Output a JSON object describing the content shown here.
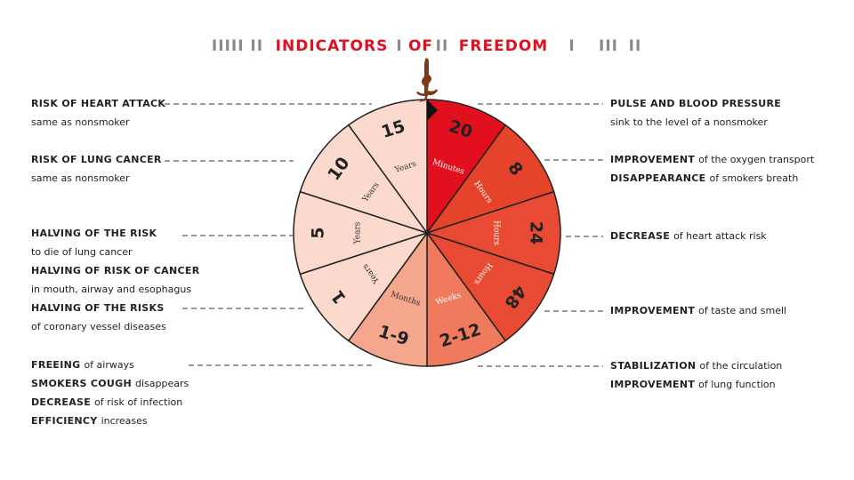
{
  "title": {
    "parts": [
      {
        "text": "IIIII II",
        "color": "#8a8a8a"
      },
      {
        "text": "INDICATORS",
        "color": "#e2101e"
      },
      {
        "text": "I",
        "color": "#8a8a8a"
      },
      {
        "text": "OF",
        "color": "#e2101e"
      },
      {
        "text": "II",
        "color": "#8a8a8a"
      },
      {
        "text": "FREEDOM",
        "color": "#e2101e"
      },
      {
        "text": "I",
        "color": "#8a8a8a"
      },
      {
        "text": "III",
        "color": "#8a8a8a"
      },
      {
        "text": "II",
        "color": "#8a8a8a"
      }
    ]
  },
  "wheel": {
    "segments": [
      {
        "number": "20",
        "unit": "Minutes",
        "color": "#e2101e"
      },
      {
        "number": "8",
        "unit": "Hours",
        "color": "#e5432a"
      },
      {
        "number": "24",
        "unit": "Hours",
        "color": "#e84a33"
      },
      {
        "number": "48",
        "unit": "Hours",
        "color": "#e84a33"
      },
      {
        "number": "2-12",
        "unit": "Weeks",
        "color": "#ef7a5e"
      },
      {
        "number": "1-9",
        "unit": "Months",
        "color": "#f5a78e"
      },
      {
        "number": "1",
        "unit": "Years",
        "color": "#fbd9cc"
      },
      {
        "number": "5",
        "unit": "Years",
        "color": "#fbd9cc"
      },
      {
        "number": "10",
        "unit": "Years",
        "color": "#fbd9cc"
      },
      {
        "number": "15",
        "unit": "Years",
        "color": "#fbd9cc"
      }
    ]
  },
  "annotations": {
    "left": [
      {
        "lines": [
          {
            "bold": "RISK OF HEART ATTACK"
          },
          {
            "text": "same as nonsmoker"
          }
        ]
      },
      {
        "lines": [
          {
            "bold": "RISK OF LUNG CANCER"
          },
          {
            "text": "same as nonsmoker"
          }
        ]
      },
      {
        "lines": [
          {
            "bold": "HALVING OF THE RISK"
          },
          {
            "text": "to die of lung cancer"
          },
          {
            "bold": "HALVING OF RISK OF CANCER"
          },
          {
            "text": "in mouth, airway and esophagus"
          },
          {
            "bold": "HALVING OF THE RISKS"
          },
          {
            "text": "of coronary vessel diseases"
          }
        ]
      },
      {
        "lines": [
          {
            "bold": "FREEING",
            "text": "of airways"
          },
          {
            "bold": "SMOKERS COUGH",
            "text": "disappears"
          },
          {
            "bold": "DECREASE",
            "text": "of risk of infection"
          },
          {
            "bold": "EFFICIENCY",
            "text": "increases"
          }
        ]
      }
    ],
    "right": [
      {
        "lines": [
          {
            "bold": "PULSE AND BLOOD PRESSURE"
          },
          {
            "text": "sink to the level of a nonsmoker"
          }
        ]
      },
      {
        "lines": [
          {
            "bold": "IMPROVEMENT",
            "text": "of the oxygen transport"
          },
          {
            "bold": "DISAPPEARANCE",
            "text": "of smokers breath"
          }
        ]
      },
      {
        "lines": [
          {
            "bold": "DECREASE",
            "text": "of heart attack risk"
          }
        ]
      },
      {
        "lines": [
          {
            "bold": "IMPROVEMENT",
            "text": "of taste and smell"
          }
        ]
      },
      {
        "lines": [
          {
            "bold": "STABILIZATION",
            "text": "of the circulation"
          },
          {
            "bold": "IMPROVEMENT",
            "text": "of lung function"
          }
        ]
      }
    ]
  }
}
